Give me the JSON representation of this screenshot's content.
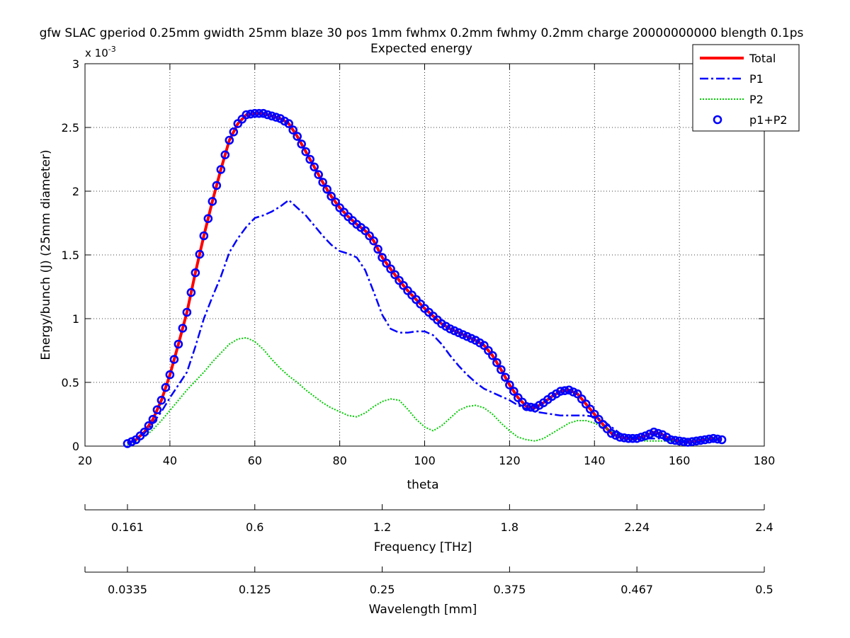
{
  "chart_data": {
    "type": "line",
    "title": "gfw SLAC gperiod 0.25mm gwidth 25mm blaze 30 pos 1mm fwhmx 0.2mm fwhmy 0.2mm charge 20000000000 blength 0.1ps",
    "subtitle": "Expected energy",
    "xlabel": "theta",
    "ylabel": "Energy/bunch (J) (25mm diameter)",
    "y_exponent_label": "x 10",
    "y_exponent_power": "-3",
    "xlim": [
      20,
      180
    ],
    "ylim": [
      0,
      3
    ],
    "y_scale": 0.001,
    "x_ticks": [
      "20",
      "40",
      "60",
      "80",
      "100",
      "120",
      "140",
      "160",
      "180"
    ],
    "y_ticks": [
      "0",
      "0.5",
      "1",
      "1.5",
      "2",
      "2.5",
      "3"
    ],
    "grid": true,
    "legend_position": "top-right",
    "extra_axes": [
      {
        "label": "Frequency [THz]",
        "tick_at_theta": [
          30,
          60,
          90,
          120,
          150,
          180
        ],
        "tick_labels": [
          "0.161",
          "0.6",
          "1.2",
          "1.8",
          "2.24",
          "2.4"
        ]
      },
      {
        "label": "Wavelength [mm]",
        "tick_at_theta": [
          30,
          60,
          90,
          120,
          150,
          180
        ],
        "tick_labels": [
          "0.0335",
          "0.125",
          "0.25",
          "0.375",
          "0.467",
          "0.5"
        ]
      }
    ],
    "series": [
      {
        "name": "Total",
        "color": "#ff0000",
        "style": "solid",
        "x": [
          30,
          32,
          34,
          36,
          38,
          40,
          42,
          44,
          46,
          48,
          50,
          52,
          54,
          56,
          58,
          60,
          62,
          64,
          66,
          68,
          70,
          72,
          74,
          76,
          78,
          80,
          82,
          84,
          86,
          88,
          90,
          92,
          94,
          96,
          98,
          100,
          102,
          104,
          106,
          108,
          110,
          112,
          114,
          116,
          118,
          120,
          122,
          124,
          126,
          128,
          130,
          132,
          134,
          136,
          138,
          140,
          142,
          144,
          146,
          148,
          150,
          152,
          154,
          156,
          158,
          160,
          162,
          164,
          166,
          168,
          170
        ],
        "values": [
          0.02,
          0.05,
          0.11,
          0.21,
          0.36,
          0.56,
          0.8,
          1.05,
          1.36,
          1.65,
          1.92,
          2.17,
          2.4,
          2.53,
          2.6,
          2.61,
          2.61,
          2.59,
          2.57,
          2.53,
          2.43,
          2.31,
          2.19,
          2.07,
          1.96,
          1.87,
          1.8,
          1.74,
          1.69,
          1.61,
          1.48,
          1.39,
          1.3,
          1.22,
          1.15,
          1.08,
          1.02,
          0.96,
          0.92,
          0.89,
          0.86,
          0.83,
          0.79,
          0.71,
          0.6,
          0.48,
          0.38,
          0.31,
          0.3,
          0.34,
          0.39,
          0.43,
          0.44,
          0.41,
          0.33,
          0.25,
          0.17,
          0.1,
          0.07,
          0.06,
          0.06,
          0.08,
          0.11,
          0.09,
          0.05,
          0.04,
          0.03,
          0.04,
          0.05,
          0.06,
          0.05
        ]
      },
      {
        "name": "P1",
        "color": "#0000ff",
        "style": "dashdot",
        "x": [
          30,
          32,
          34,
          36,
          38,
          40,
          42,
          44,
          46,
          48,
          50,
          52,
          54,
          56,
          58,
          60,
          62,
          64,
          66,
          68,
          70,
          72,
          74,
          76,
          78,
          80,
          82,
          84,
          86,
          88,
          90,
          92,
          94,
          96,
          98,
          100,
          102,
          104,
          106,
          108,
          110,
          112,
          114,
          116,
          118,
          120,
          122,
          124,
          126,
          128,
          130,
          132,
          134,
          136,
          138,
          140,
          142,
          144,
          146,
          148,
          150,
          152,
          154,
          156,
          158,
          160,
          162,
          164,
          166,
          168,
          170
        ],
        "values": [
          0.02,
          0.05,
          0.1,
          0.18,
          0.27,
          0.38,
          0.48,
          0.58,
          0.78,
          1.0,
          1.17,
          1.33,
          1.52,
          1.63,
          1.72,
          1.79,
          1.81,
          1.84,
          1.88,
          1.93,
          1.87,
          1.81,
          1.73,
          1.65,
          1.58,
          1.53,
          1.51,
          1.48,
          1.38,
          1.21,
          1.03,
          0.92,
          0.89,
          0.89,
          0.9,
          0.9,
          0.87,
          0.8,
          0.71,
          0.63,
          0.56,
          0.5,
          0.45,
          0.42,
          0.39,
          0.36,
          0.32,
          0.29,
          0.27,
          0.26,
          0.25,
          0.24,
          0.24,
          0.24,
          0.24,
          0.23,
          0.2,
          0.15,
          0.1,
          0.07,
          0.06,
          0.06,
          0.06,
          0.06,
          0.05,
          0.04,
          0.03,
          0.03,
          0.04,
          0.05,
          0.05
        ]
      },
      {
        "name": "P2",
        "color": "#00cc00",
        "style": "dotted",
        "x": [
          30,
          32,
          34,
          36,
          38,
          40,
          42,
          44,
          46,
          48,
          50,
          52,
          54,
          56,
          58,
          60,
          62,
          64,
          66,
          68,
          70,
          72,
          74,
          76,
          78,
          80,
          82,
          84,
          86,
          88,
          90,
          92,
          94,
          96,
          98,
          100,
          102,
          104,
          106,
          108,
          110,
          112,
          114,
          116,
          118,
          120,
          122,
          124,
          126,
          128,
          130,
          132,
          134,
          136,
          138,
          140,
          142,
          144,
          146,
          148,
          150,
          152,
          154,
          156,
          158,
          160,
          162,
          164,
          166,
          168,
          170
        ],
        "values": [
          0.01,
          0.03,
          0.07,
          0.13,
          0.2,
          0.28,
          0.36,
          0.44,
          0.51,
          0.58,
          0.66,
          0.73,
          0.8,
          0.84,
          0.85,
          0.82,
          0.76,
          0.68,
          0.61,
          0.55,
          0.5,
          0.44,
          0.39,
          0.34,
          0.3,
          0.27,
          0.24,
          0.23,
          0.26,
          0.31,
          0.35,
          0.37,
          0.36,
          0.29,
          0.21,
          0.15,
          0.12,
          0.16,
          0.22,
          0.28,
          0.31,
          0.32,
          0.3,
          0.25,
          0.18,
          0.12,
          0.07,
          0.05,
          0.04,
          0.06,
          0.1,
          0.14,
          0.18,
          0.2,
          0.2,
          0.18,
          0.15,
          0.12,
          0.09,
          0.07,
          0.05,
          0.04,
          0.04,
          0.04,
          0.04,
          0.04,
          0.05,
          0.06,
          0.06,
          0.06,
          0.05
        ]
      },
      {
        "name": "p1+P2",
        "color": "#0000ff",
        "style": "circles",
        "x": [
          30,
          32,
          34,
          36,
          38,
          40,
          42,
          44,
          46,
          48,
          50,
          52,
          54,
          56,
          58,
          60,
          62,
          64,
          66,
          68,
          70,
          72,
          74,
          76,
          78,
          80,
          82,
          84,
          86,
          88,
          90,
          92,
          94,
          96,
          98,
          100,
          102,
          104,
          106,
          108,
          110,
          112,
          114,
          116,
          118,
          120,
          122,
          124,
          126,
          128,
          130,
          132,
          134,
          136,
          138,
          140,
          142,
          144,
          146,
          148,
          150,
          152,
          154,
          156,
          158,
          160,
          162,
          164,
          166,
          168,
          170
        ],
        "values": [
          0.02,
          0.05,
          0.11,
          0.21,
          0.36,
          0.56,
          0.8,
          1.05,
          1.36,
          1.65,
          1.92,
          2.17,
          2.4,
          2.53,
          2.6,
          2.61,
          2.61,
          2.59,
          2.57,
          2.53,
          2.43,
          2.31,
          2.19,
          2.07,
          1.96,
          1.87,
          1.8,
          1.74,
          1.69,
          1.61,
          1.48,
          1.39,
          1.3,
          1.22,
          1.15,
          1.08,
          1.02,
          0.96,
          0.92,
          0.89,
          0.86,
          0.83,
          0.79,
          0.71,
          0.6,
          0.48,
          0.38,
          0.31,
          0.3,
          0.34,
          0.39,
          0.43,
          0.44,
          0.41,
          0.33,
          0.25,
          0.17,
          0.1,
          0.07,
          0.06,
          0.06,
          0.08,
          0.11,
          0.09,
          0.05,
          0.04,
          0.03,
          0.04,
          0.05,
          0.06,
          0.05
        ]
      }
    ]
  }
}
